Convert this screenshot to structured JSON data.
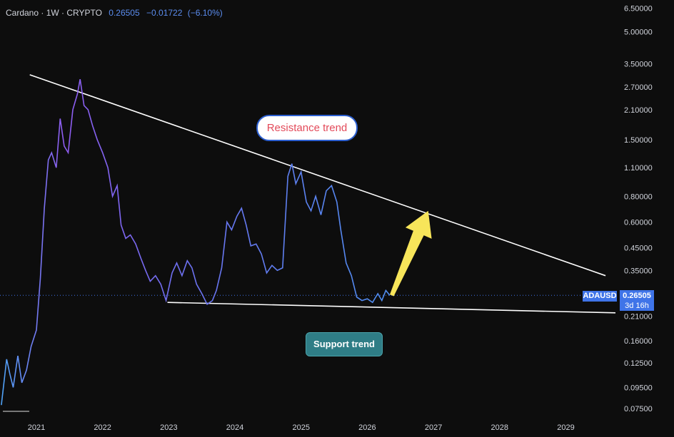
{
  "header": {
    "symbol": "Cardano · 1W · CRYPTO",
    "price": "0.26505",
    "change": "−0.01722",
    "change_pct": "(−6.10%)"
  },
  "badges": {
    "symbol": "ADAUSD",
    "price": "0.26505",
    "countdown": "3d 16h"
  },
  "annotations": {
    "resistance": "Resistance trend",
    "support": "Support trend"
  },
  "colors": {
    "background": "#0d0d0d",
    "line_start": "#4fa3f7",
    "line_mid": "#8f5cf0",
    "line_end": "#4f8ef0",
    "trendline": "#ffffff",
    "arrow": "#f7e55a",
    "badge": "#3f74e8"
  },
  "chart_data": {
    "type": "line",
    "y_scale": "log",
    "x_tick_labels": [
      "2021",
      "2022",
      "2023",
      "2024",
      "2025",
      "2026",
      "2027",
      "2028",
      "2029"
    ],
    "y_tick_labels": [
      "6.50000",
      "5.00000",
      "3.50000",
      "2.70000",
      "2.10000",
      "1.50000",
      "1.10000",
      "0.80000",
      "0.60000",
      "0.45000",
      "0.35000",
      "0.21000",
      "0.16000",
      "0.12500",
      "0.09500",
      "0.07500"
    ],
    "y_ticks": [
      6.5,
      5.0,
      3.5,
      2.7,
      2.1,
      1.5,
      1.1,
      0.8,
      0.6,
      0.45,
      0.35,
      0.21,
      0.16,
      0.125,
      0.095,
      0.075
    ],
    "x_range": [
      2020.45,
      2029.75
    ],
    "y_range": [
      0.071,
      6.8
    ],
    "series": [
      {
        "x": [
          2020.47,
          2020.55,
          2020.6,
          2020.65,
          2020.72,
          2020.78,
          2020.85,
          2020.92,
          2021.0,
          2021.06,
          2021.12,
          2021.18,
          2021.23,
          2021.3,
          2021.36,
          2021.42,
          2021.48,
          2021.55,
          2021.62,
          2021.66,
          2021.72,
          2021.78,
          2021.85,
          2021.92,
          2022.0,
          2022.08,
          2022.15,
          2022.22,
          2022.28,
          2022.35,
          2022.42,
          2022.5,
          2022.58,
          2022.65,
          2022.72,
          2022.8,
          2022.88,
          2022.96,
          2023.05,
          2023.12,
          2023.2,
          2023.28,
          2023.35,
          2023.42,
          2023.5,
          2023.58,
          2023.66,
          2023.72,
          2023.8,
          2023.88,
          2023.95,
          2024.03,
          2024.1,
          2024.17,
          2024.24,
          2024.32,
          2024.4,
          2024.48,
          2024.56,
          2024.64,
          2024.72,
          2024.8,
          2024.86,
          2024.92,
          2025.0,
          2025.08,
          2025.15,
          2025.22,
          2025.3,
          2025.38,
          2025.46,
          2025.54,
          2025.6,
          2025.68,
          2025.76,
          2025.84,
          2025.92,
          2026.0,
          2026.08,
          2026.16,
          2026.22,
          2026.28,
          2026.34
        ],
        "y": [
          0.078,
          0.13,
          0.11,
          0.095,
          0.135,
          0.1,
          0.115,
          0.15,
          0.18,
          0.32,
          0.7,
          1.2,
          1.3,
          1.1,
          1.9,
          1.4,
          1.3,
          2.1,
          2.5,
          2.95,
          2.2,
          2.1,
          1.75,
          1.5,
          1.3,
          1.1,
          0.8,
          0.9,
          0.58,
          0.5,
          0.52,
          0.47,
          0.4,
          0.35,
          0.31,
          0.33,
          0.3,
          0.25,
          0.34,
          0.38,
          0.33,
          0.39,
          0.36,
          0.3,
          0.27,
          0.24,
          0.25,
          0.28,
          0.36,
          0.6,
          0.55,
          0.64,
          0.7,
          0.58,
          0.46,
          0.47,
          0.42,
          0.34,
          0.37,
          0.35,
          0.36,
          1.0,
          1.15,
          0.92,
          1.05,
          0.75,
          0.68,
          0.8,
          0.65,
          0.85,
          0.9,
          0.75,
          0.55,
          0.38,
          0.33,
          0.26,
          0.25,
          0.255,
          0.245,
          0.27,
          0.25,
          0.28,
          0.265
        ]
      }
    ],
    "trendlines": [
      {
        "name": "resistance",
        "x": [
          2020.9,
          2029.6
        ],
        "y": [
          3.1,
          0.33
        ]
      },
      {
        "name": "support",
        "x": [
          2022.98,
          2029.75
        ],
        "y": [
          0.245,
          0.218
        ]
      }
    ],
    "arrow": {
      "from": [
        2026.37,
        0.265
      ],
      "to": [
        2026.92,
        0.68
      ]
    },
    "current_price": 0.26505,
    "grid": false
  }
}
